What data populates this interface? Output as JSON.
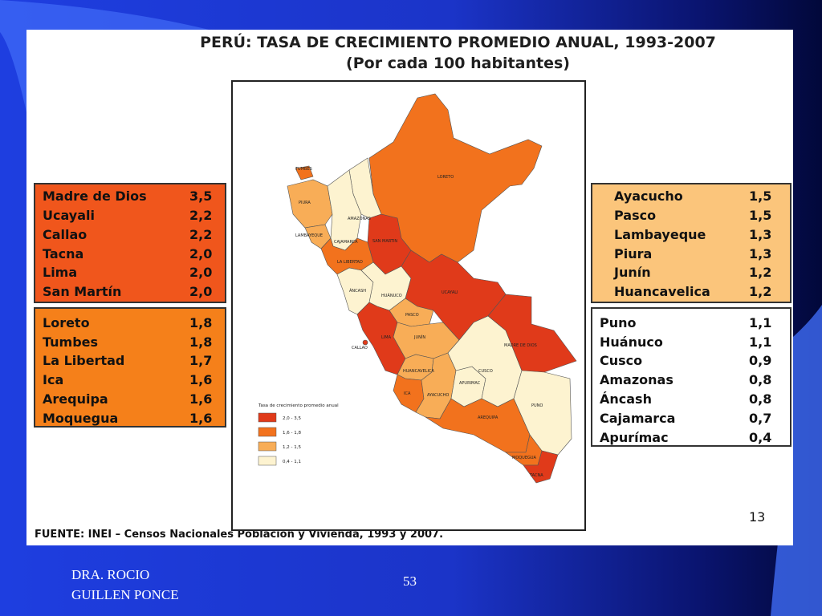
{
  "slide": {
    "title": "PERÚ: TASA DE CRECIMIENTO PROMEDIO ANUAL, 1993-2007",
    "subtitle": "(Por cada 100 habitantes)",
    "source": "FUENTE: INEI – Censos Nacionales Población y Vivienda, 1993 y 2007.",
    "inner_page_number": "13",
    "footer_author_line1": "DRA. ROCIO",
    "footer_author_line2": "GUILLEN PONCE",
    "footer_page_number": "53"
  },
  "colors": {
    "tier1": "#e03a1a",
    "tier2": "#f2721d",
    "tier3": "#f8ad57",
    "tier4": "#fdf3d0",
    "box_red": "#f0561c",
    "box_orange": "#f5801a",
    "box_peach": "#fbc57b",
    "box_white": "#ffffff"
  },
  "legend_groups": [
    {
      "items": [
        {
          "name": "Madre de Dios",
          "value": "3,5"
        },
        {
          "name": "Ucayali",
          "value": "2,2"
        },
        {
          "name": "Callao",
          "value": "2,2"
        },
        {
          "name": "Tacna",
          "value": "2,0"
        },
        {
          "name": "Lima",
          "value": "2,0"
        },
        {
          "name": "San Martín",
          "value": "2,0"
        }
      ]
    },
    {
      "items": [
        {
          "name": "Loreto",
          "value": "1,8"
        },
        {
          "name": "Tumbes",
          "value": "1,8"
        },
        {
          "name": "La Libertad",
          "value": "1,7"
        },
        {
          "name": "Ica",
          "value": "1,6"
        },
        {
          "name": "Arequipa",
          "value": "1,6"
        },
        {
          "name": "Moquegua",
          "value": "1,6"
        }
      ]
    },
    {
      "items": [
        {
          "name": "Ayacucho",
          "value": "1,5"
        },
        {
          "name": "Pasco",
          "value": "1,5"
        },
        {
          "name": "Lambayeque",
          "value": "1,3"
        },
        {
          "name": "Piura",
          "value": "1,3"
        },
        {
          "name": "Junín",
          "value": "1,2"
        },
        {
          "name": "Huancavelica",
          "value": "1,2"
        }
      ]
    },
    {
      "items": [
        {
          "name": "Puno",
          "value": "1,1"
        },
        {
          "name": "Huánuco",
          "value": "1,1"
        },
        {
          "name": "Cusco",
          "value": "0,9"
        },
        {
          "name": "Amazonas",
          "value": "0,8"
        },
        {
          "name": "Áncash",
          "value": "0,8"
        },
        {
          "name": "Cajamarca",
          "value": "0,7"
        },
        {
          "name": "Apurímac",
          "value": "0,4"
        }
      ]
    }
  ],
  "map": {
    "legend_title": "Tasa de crecimiento promedio anual",
    "legend_ranges": [
      "2,0 - 3,5",
      "1,6 - 1,8",
      "1,2 - 1,5",
      "0,4 - 1,1"
    ],
    "region_labels": [
      "TUMBES",
      "PIURA",
      "LAMBAYEQUE",
      "CAJAMARCA",
      "AMAZONAS",
      "SAN MARTIN",
      "LORETO",
      "LA LIBERTAD",
      "ÁNCASH",
      "HUÁNUCO",
      "UCAYALI",
      "PASCO",
      "CALLAO",
      "LIMA",
      "JUNÍN",
      "HUANCAVELICA",
      "ICA",
      "AYACUCHO",
      "APURIMAC",
      "CUSCO",
      "MADRE DE DIOS",
      "PUNO",
      "AREQUIPA",
      "MOQUEGUA",
      "TACNA"
    ]
  }
}
